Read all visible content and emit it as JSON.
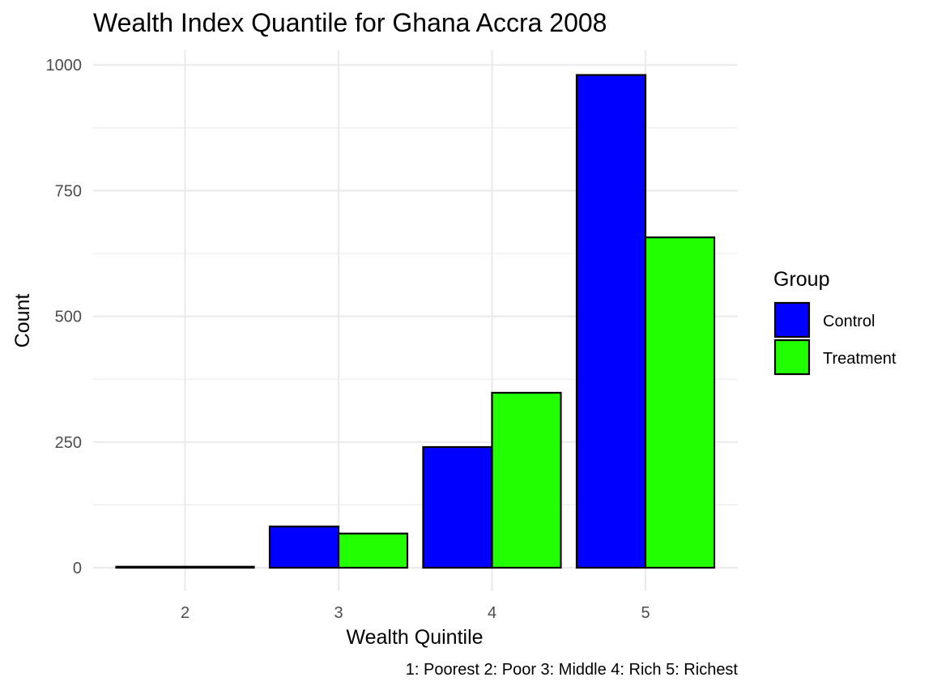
{
  "chart_data": {
    "type": "bar",
    "title": "Wealth Index Quantile for Ghana Accra 2008",
    "xlabel": "Wealth Quintile",
    "ylabel": "Count",
    "caption": "1: Poorest 2: Poor 3: Middle 4: Rich 5: Richest",
    "categories": [
      "2",
      "3",
      "4",
      "5"
    ],
    "series": [
      {
        "name": "Control",
        "color": "#0000ff",
        "values": [
          2,
          82,
          240,
          980
        ]
      },
      {
        "name": "Treatment",
        "color": "#22ff00",
        "values": [
          null,
          68,
          348,
          657
        ]
      }
    ],
    "ylim": [
      0,
      1000
    ],
    "yticks": [
      0,
      250,
      500,
      750,
      1000
    ],
    "grid": true,
    "legend": {
      "title": "Group",
      "position": "right"
    }
  }
}
